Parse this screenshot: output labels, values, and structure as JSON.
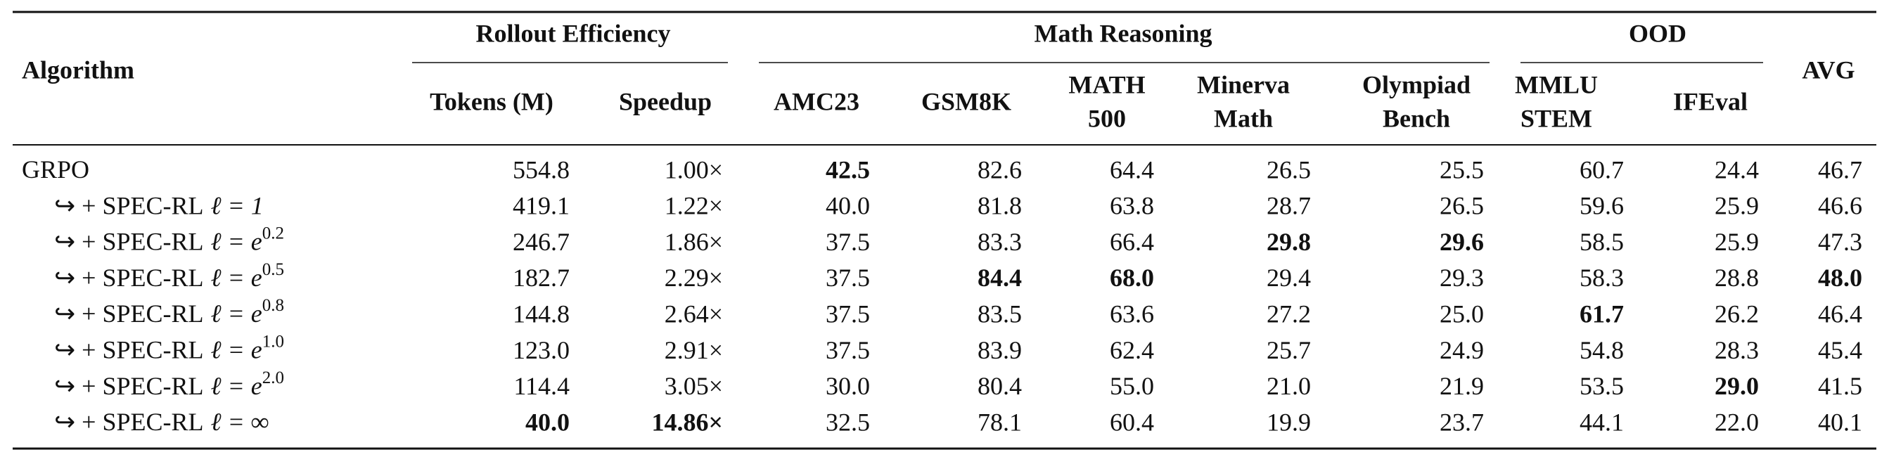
{
  "header": {
    "row_label": "Algorithm",
    "groups": [
      "Rollout Efficiency",
      "Math Reasoning",
      "OOD"
    ],
    "columns": [
      [
        "Tokens (M)"
      ],
      [
        "Speedup"
      ],
      [
        "AMC23"
      ],
      [
        "GSM8K"
      ],
      [
        "MATH",
        "500"
      ],
      [
        "Minerva",
        "Math"
      ],
      [
        "Olympiad",
        "Bench"
      ],
      [
        "MMLU",
        "STEM"
      ],
      [
        "IFEval"
      ],
      [
        "AVG"
      ]
    ]
  },
  "rows": [
    {
      "label": {
        "text": "GRPO"
      },
      "cells": [
        "554.8",
        "1.00×",
        "42.5",
        "82.6",
        "64.4",
        "26.5",
        "25.5",
        "60.7",
        "24.4",
        "46.7"
      ],
      "bold": [
        2
      ]
    },
    {
      "label": {
        "text": "↪ + SPEC-RL",
        "math": "ℓ = 1"
      },
      "cells": [
        "419.1",
        "1.22×",
        "40.0",
        "81.8",
        "63.8",
        "28.7",
        "26.5",
        "59.6",
        "25.9",
        "46.6"
      ],
      "bold": []
    },
    {
      "label": {
        "text": "↪ + SPEC-RL",
        "math": "ℓ = e",
        "sup": "0.2"
      },
      "cells": [
        "246.7",
        "1.86×",
        "37.5",
        "83.3",
        "66.4",
        "29.8",
        "29.6",
        "58.5",
        "25.9",
        "47.3"
      ],
      "bold": [
        5,
        6
      ]
    },
    {
      "label": {
        "text": "↪ + SPEC-RL",
        "math": "ℓ = e",
        "sup": "0.5"
      },
      "cells": [
        "182.7",
        "2.29×",
        "37.5",
        "84.4",
        "68.0",
        "29.4",
        "29.3",
        "58.3",
        "28.8",
        "48.0"
      ],
      "bold": [
        3,
        4,
        9
      ]
    },
    {
      "label": {
        "text": "↪ + SPEC-RL",
        "math": "ℓ = e",
        "sup": "0.8"
      },
      "cells": [
        "144.8",
        "2.64×",
        "37.5",
        "83.5",
        "63.6",
        "27.2",
        "25.0",
        "61.7",
        "26.2",
        "46.4"
      ],
      "bold": [
        7
      ]
    },
    {
      "label": {
        "text": "↪ + SPEC-RL",
        "math": "ℓ = e",
        "sup": "1.0"
      },
      "cells": [
        "123.0",
        "2.91×",
        "37.5",
        "83.9",
        "62.4",
        "25.7",
        "24.9",
        "54.8",
        "28.3",
        "45.4"
      ],
      "bold": []
    },
    {
      "label": {
        "text": "↪ + SPEC-RL",
        "math": "ℓ = e",
        "sup": "2.0"
      },
      "cells": [
        "114.4",
        "3.05×",
        "30.0",
        "80.4",
        "55.0",
        "21.0",
        "21.9",
        "53.5",
        "29.0",
        "41.5"
      ],
      "bold": [
        8
      ]
    },
    {
      "label": {
        "text": "↪ + SPEC-RL",
        "math": "ℓ = ∞"
      },
      "cells": [
        "40.0",
        "14.86×",
        "32.5",
        "78.1",
        "60.4",
        "19.9",
        "23.7",
        "44.1",
        "22.0",
        "40.1"
      ],
      "bold": [
        0,
        1
      ]
    }
  ]
}
